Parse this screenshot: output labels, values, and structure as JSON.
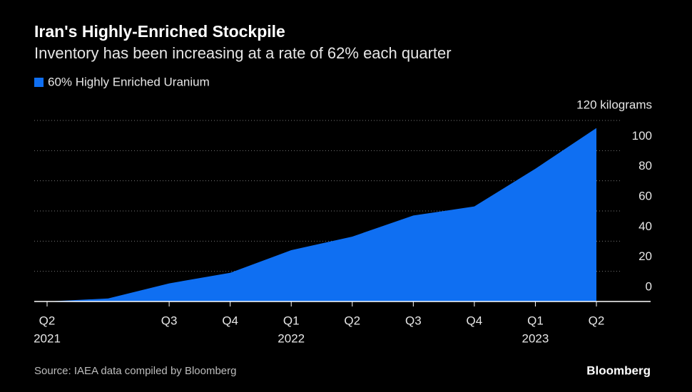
{
  "chart_data": {
    "type": "area",
    "title": "Iran's Highly-Enriched Stockpile",
    "subtitle": "Inventory has been increasing at a rate of 62% each quarter",
    "source": "Source: IAEA data compiled by Bloomberg",
    "brand": "Bloomberg",
    "categories": [
      "Q2",
      null,
      "Q3",
      "Q4",
      "Q1",
      "Q2",
      "Q3",
      "Q4",
      "Q1",
      "Q2"
    ],
    "category_years": [
      "2021",
      null,
      null,
      null,
      "2022",
      null,
      null,
      null,
      "2023",
      null
    ],
    "series": [
      {
        "name": "60% Highly Enriched Uranium",
        "color": "#0f6ff2",
        "values": [
          0,
          2,
          12,
          19,
          34,
          43,
          57,
          63,
          88,
          115
        ]
      }
    ],
    "ylim": [
      0,
      120
    ],
    "yticks": [
      0,
      20,
      40,
      60,
      80,
      100,
      {
        "value": 120,
        "label": "120 kilograms"
      }
    ],
    "grid": true
  }
}
